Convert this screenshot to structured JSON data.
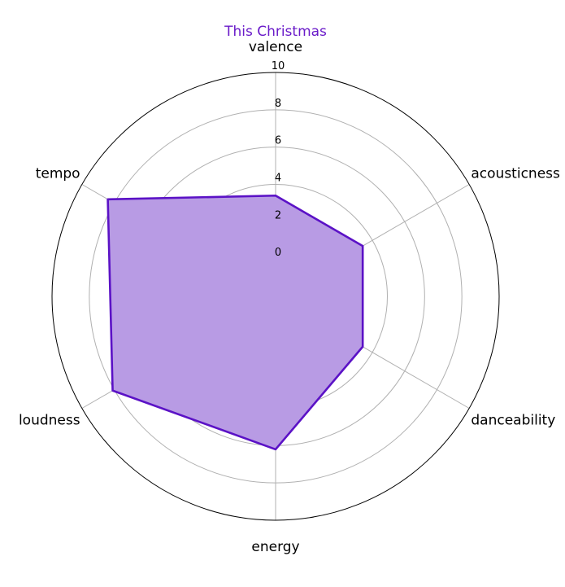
{
  "chart_data": {
    "type": "radar",
    "title": "This Christmas",
    "axes": [
      "valence",
      "acousticness",
      "danceability",
      "energy",
      "loudness",
      "tempo"
    ],
    "series": [
      {
        "values": [
          3.4,
          3.4,
          3.4,
          6.2,
          8.1,
          8.4
        ]
      }
    ],
    "r_ticks": [
      0,
      2,
      4,
      6,
      8,
      10
    ],
    "rlim": [
      -2,
      10
    ],
    "grid": true,
    "colors": {
      "title": "#6a1bc9",
      "line": "#5b12c6",
      "fill": "#b89be4",
      "grid": "#b0b0b0",
      "outer_ring": "#000000"
    }
  }
}
